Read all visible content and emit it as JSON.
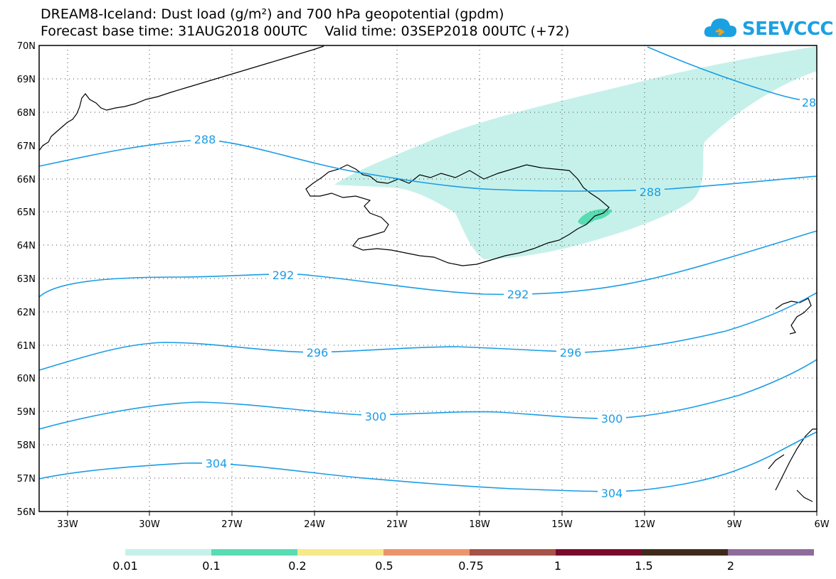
{
  "title": {
    "line1": "DREAM8-Iceland: Dust load (g/m²) and 700 hPa geopotential (gpdm)",
    "line2": "Forecast base time: 31AUG2018 00UTC    Valid time: 03SEP2018 00UTC (+72)"
  },
  "logo": {
    "text": "SEEVCCC",
    "icon": "cloud-icon"
  },
  "axes": {
    "lat_labels": [
      "70N",
      "69N",
      "68N",
      "67N",
      "66N",
      "65N",
      "64N",
      "63N",
      "62N",
      "61N",
      "60N",
      "59N",
      "58N",
      "57N",
      "56N"
    ],
    "lon_labels": [
      "33W",
      "30W",
      "27W",
      "24W",
      "21W",
      "18W",
      "15W",
      "12W",
      "9W",
      "6W"
    ]
  },
  "contours": {
    "labels": [
      "288",
      "288",
      "28",
      "292",
      "292",
      "296",
      "296",
      "300",
      "300",
      "304",
      "304"
    ]
  },
  "colorbar": {
    "colors": [
      "#c6f1ea",
      "#58dcb2",
      "#f7e98a",
      "#ec946c",
      "#a65348",
      "#7a0a2c",
      "#3e2a1b",
      "#8f6b9c"
    ],
    "labels": [
      "0.01",
      "0.1",
      "0.2",
      "0.5",
      "0.75",
      "1",
      "1.5",
      "2"
    ]
  },
  "colors": {
    "contour": "#1a9de6",
    "dust_light": "#c6f1ea",
    "dust_mid": "#58dcb2",
    "coast": "#000000"
  }
}
